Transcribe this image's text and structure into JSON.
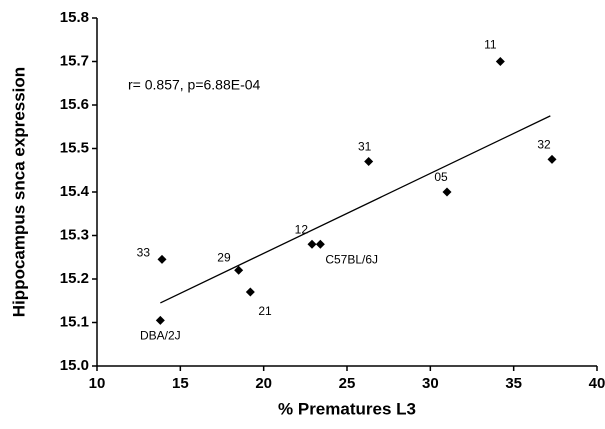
{
  "chart_data": {
    "type": "scatter",
    "xlabel": "% Prematures L3",
    "ylabel": "Hippocampus snca expression",
    "annotation": "r= 0.857, p=6.88E-04",
    "xlim": [
      10,
      40
    ],
    "xticks": [
      10,
      15,
      20,
      25,
      30,
      35,
      40
    ],
    "ylim": [
      15,
      15.8
    ],
    "yticks": [
      {
        "value": 15,
        "label": "15.0"
      },
      15.1,
      15.2,
      15.3,
      15.4,
      15.5,
      15.6,
      15.7,
      15.8
    ],
    "color": "#000000",
    "labels": [
      "DBA/2J",
      "33",
      "29",
      "21",
      "12",
      "C57BL/6J",
      "31",
      "05",
      "11",
      "32"
    ],
    "x": [
      13.8,
      13.9,
      18.5,
      19.2,
      22.9,
      23.4,
      26.3,
      31.0,
      34.2,
      37.3
    ],
    "y": [
      15.105,
      15.245,
      15.22,
      15.17,
      15.28,
      15.28,
      15.47,
      15.4,
      15.7,
      15.475
    ],
    "trend_line": {
      "x": [
        13.8,
        37.2
      ],
      "y": [
        15.145,
        15.575
      ]
    }
  }
}
